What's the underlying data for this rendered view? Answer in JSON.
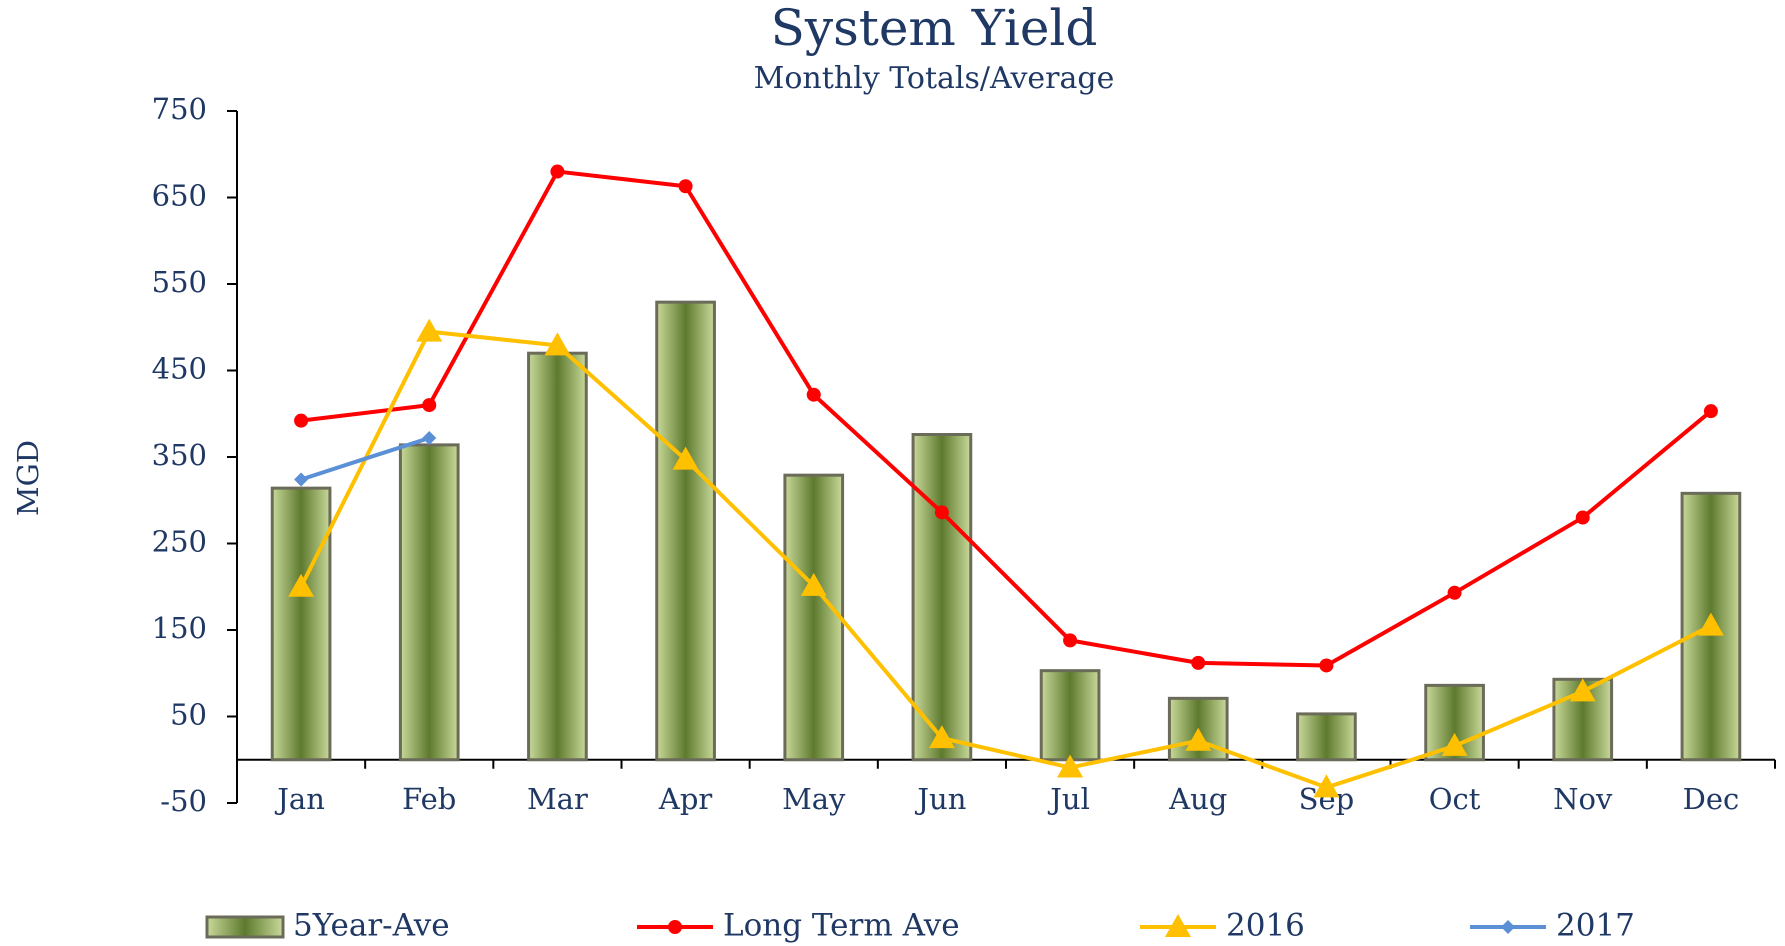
{
  "chart_data": {
    "type": "bar",
    "title": "System Yield",
    "subtitle": "Monthly Totals/Average",
    "y_label": "MGD",
    "categories": [
      "Jan",
      "Feb",
      "Mar",
      "Apr",
      "May",
      "Jun",
      "Jul",
      "Aug",
      "Sep",
      "Oct",
      "Nov",
      "Dec"
    ],
    "series": [
      {
        "name": "5Year-Ave",
        "type": "bar",
        "color": "#8aa05a",
        "values": [
          314,
          364,
          470,
          529,
          329,
          376,
          103,
          71,
          53,
          86,
          93,
          308
        ]
      },
      {
        "name": "Long Term Ave",
        "type": "line",
        "marker": "circle",
        "color": "#ff0000",
        "values": [
          392,
          410,
          680,
          663,
          422,
          286,
          138,
          112,
          109,
          193,
          280,
          403
        ]
      },
      {
        "name": "2016",
        "type": "line",
        "marker": "triangle",
        "color": "#ffc000",
        "values": [
          200,
          495,
          479,
          347,
          201,
          25,
          -9,
          22,
          -32,
          16,
          79,
          155
        ]
      },
      {
        "name": "2017",
        "type": "line",
        "marker": "diamond",
        "color": "#5b8fd6",
        "values": [
          324,
          372,
          null,
          null,
          null,
          null,
          null,
          null,
          null,
          null,
          null,
          null
        ]
      }
    ],
    "ylim": [
      -50,
      750
    ],
    "yticks": [
      -50,
      50,
      150,
      250,
      350,
      450,
      550,
      650,
      750
    ],
    "grid": false,
    "legend": "bottom"
  }
}
